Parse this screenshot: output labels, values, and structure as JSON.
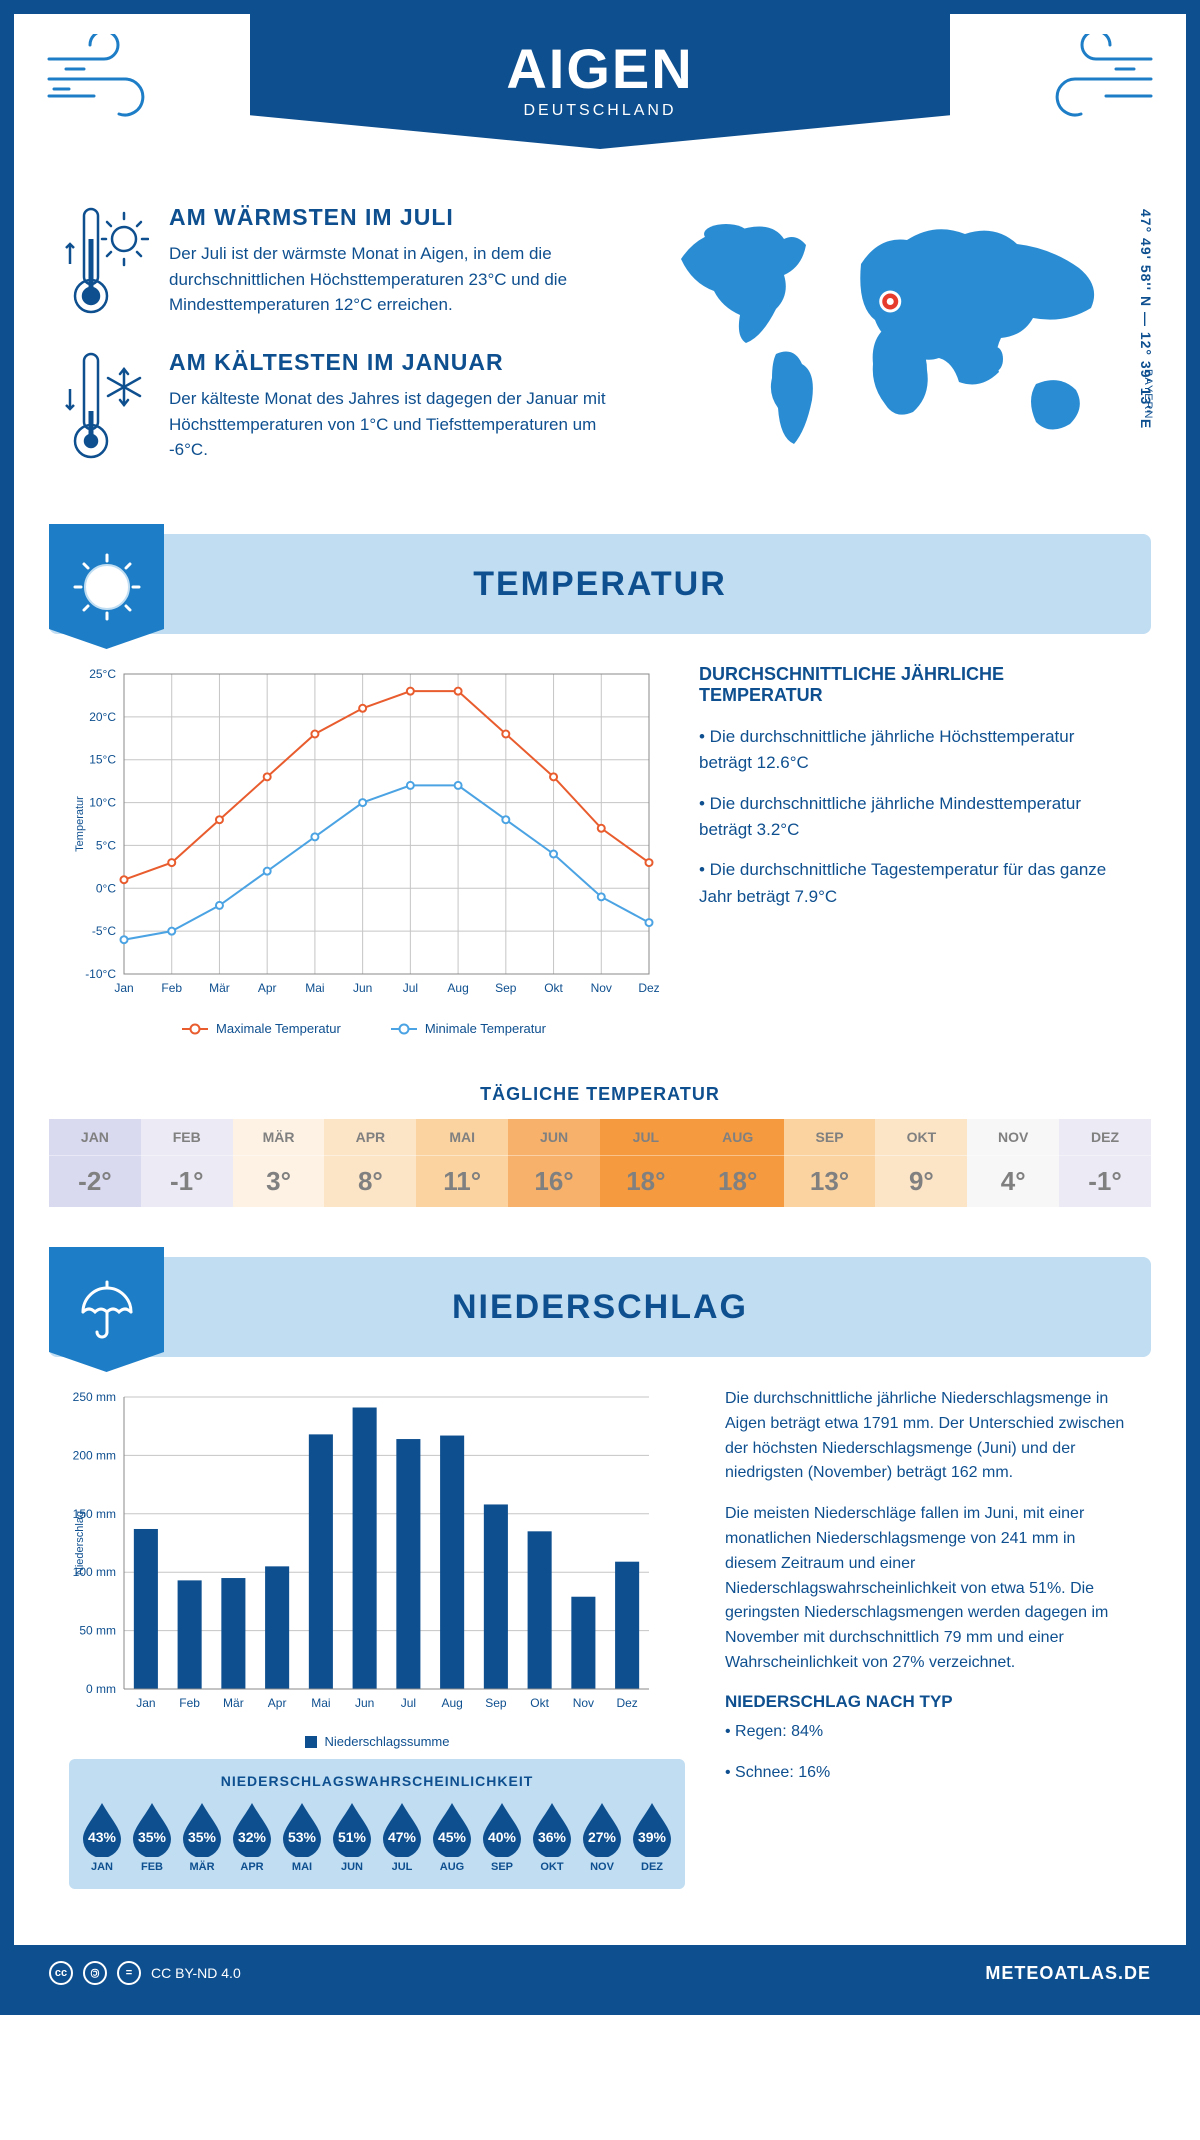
{
  "colors": {
    "primary": "#0e4f8f",
    "light_blue": "#c0ddf2",
    "mid_blue": "#1d7dc6",
    "max_temp_line": "#e85c2e",
    "min_temp_line": "#4ba3e3",
    "bar_fill": "#0e4f8f",
    "grid": "#c5c5c5",
    "marker_red": "#e63c2e"
  },
  "header": {
    "title": "AIGEN",
    "subtitle": "DEUTSCHLAND"
  },
  "location": {
    "coords": "47° 49' 58'' N — 12° 39' 13'' E",
    "region": "BAYERN",
    "marker_xy": [
      0.488,
      0.375
    ]
  },
  "facts": {
    "warm": {
      "title": "AM WÄRMSTEN IM JULI",
      "text": "Der Juli ist der wärmste Monat in Aigen, in dem die durchschnittlichen Höchsttemperaturen 23°C und die Mindesttemperaturen 12°C erreichen."
    },
    "cold": {
      "title": "AM KÄLTESTEN IM JANUAR",
      "text": "Der kälteste Monat des Jahres ist dagegen der Januar mit Höchsttemperaturen von 1°C und Tiefsttemperaturen um -6°C."
    }
  },
  "sections": {
    "temperature": "TEMPERATUR",
    "precip": "NIEDERSCHLAG"
  },
  "temp_chart": {
    "months": [
      "Jan",
      "Feb",
      "Mär",
      "Apr",
      "Mai",
      "Jun",
      "Jul",
      "Aug",
      "Sep",
      "Okt",
      "Nov",
      "Dez"
    ],
    "max_series": [
      1,
      3,
      8,
      13,
      18,
      21,
      23,
      23,
      18,
      13,
      7,
      3
    ],
    "min_series": [
      -6,
      -5,
      -2,
      2,
      6,
      10,
      12,
      12,
      8,
      4,
      -1,
      -4
    ],
    "ylim": [
      -10,
      25
    ],
    "ytick_step": 5,
    "y_axis_label": "Temperatur",
    "legend_max": "Maximale Temperatur",
    "legend_min": "Minimale Temperatur",
    "line_width": 2,
    "marker_radius": 3.5
  },
  "temp_summary": {
    "heading": "DURCHSCHNITTLICHE JÄHRLICHE TEMPERATUR",
    "bullets": [
      "• Die durchschnittliche jährliche Höchsttemperatur beträgt 12.6°C",
      "• Die durchschnittliche jährliche Mindesttemperatur beträgt 3.2°C",
      "• Die durchschnittliche Tagestemperatur für das ganze Jahr beträgt 7.9°C"
    ]
  },
  "daily_temp": {
    "title": "TÄGLICHE TEMPERATUR",
    "months": [
      "JAN",
      "FEB",
      "MÄR",
      "APR",
      "MAI",
      "JUN",
      "JUL",
      "AUG",
      "SEP",
      "OKT",
      "NOV",
      "DEZ"
    ],
    "values": [
      "-2°",
      "-1°",
      "3°",
      "8°",
      "11°",
      "16°",
      "18°",
      "18°",
      "13°",
      "9°",
      "4°",
      "-1°"
    ],
    "bg_colors": [
      "#d9d9f0",
      "#eceaf5",
      "#fdf2e4",
      "#fce4c6",
      "#fad3a1",
      "#f7b16b",
      "#f59a3f",
      "#f59a3f",
      "#fad3a1",
      "#fce4c6",
      "#f7f7f7",
      "#eceaf5"
    ]
  },
  "precip_chart": {
    "months": [
      "Jan",
      "Feb",
      "Mär",
      "Apr",
      "Mai",
      "Jun",
      "Jul",
      "Aug",
      "Sep",
      "Okt",
      "Nov",
      "Dez"
    ],
    "values": [
      137,
      93,
      95,
      105,
      218,
      241,
      214,
      217,
      158,
      135,
      79,
      109
    ],
    "ylim": [
      0,
      250
    ],
    "ytick_step": 50,
    "y_axis_label": "Niederschlag",
    "legend": "Niederschlagssumme",
    "bar_width_ratio": 0.55
  },
  "precip_text": {
    "p1": "Die durchschnittliche jährliche Niederschlagsmenge in Aigen beträgt etwa 1791 mm. Der Unterschied zwischen der höchsten Niederschlagsmenge (Juni) und der niedrigsten (November) beträgt 162 mm.",
    "p2": "Die meisten Niederschläge fallen im Juni, mit einer monatlichen Niederschlagsmenge von 241 mm in diesem Zeitraum und einer Niederschlagswahrscheinlichkeit von etwa 51%. Die geringsten Niederschlagsmengen werden dagegen im November mit durchschnittlich 79 mm und einer Wahrscheinlichkeit von 27% verzeichnet.",
    "type_heading": "NIEDERSCHLAG NACH TYP",
    "type_bullets": [
      "• Regen: 84%",
      "• Schnee: 16%"
    ]
  },
  "precip_prob": {
    "title": "NIEDERSCHLAGSWAHRSCHEINLICHKEIT",
    "months": [
      "JAN",
      "FEB",
      "MÄR",
      "APR",
      "MAI",
      "JUN",
      "JUL",
      "AUG",
      "SEP",
      "OKT",
      "NOV",
      "DEZ"
    ],
    "values": [
      "43%",
      "35%",
      "35%",
      "32%",
      "53%",
      "51%",
      "47%",
      "45%",
      "40%",
      "36%",
      "27%",
      "39%"
    ]
  },
  "footer": {
    "license": "CC BY-ND 4.0",
    "site": "METEOATLAS.DE"
  }
}
